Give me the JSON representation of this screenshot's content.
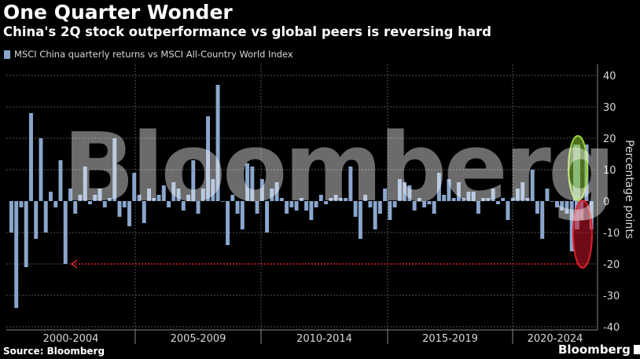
{
  "header": {
    "title": "One Quarter Wonder",
    "subtitle": "China's 2Q stock outperformance vs global peers is reversing hard"
  },
  "legend": {
    "label": "MSCI China quarterly returns vs MSCI All-Country World Index",
    "color": "#8aa6cc"
  },
  "footer": {
    "source": "Source: Bloomberg",
    "brand": "Bloomberg"
  },
  "watermark": "Bloomberg",
  "colors": {
    "bar": "#8aa6cc",
    "grid": "#555555",
    "axis": "#888888",
    "reference_line": "#e0202a",
    "highlight_up": "#9ad93a",
    "highlight_down": "#e0202a"
  },
  "chart_data": {
    "type": "bar",
    "title": "One Quarter Wonder",
    "subtitle": "China's 2Q stock outperformance vs global peers is reversing hard",
    "ylabel": "Percentage points",
    "xlabel": "",
    "ylim": [
      -40,
      40
    ],
    "yticks": [
      40,
      30,
      20,
      10,
      0,
      -10,
      -20,
      -30,
      -40
    ],
    "grid": true,
    "legend_position": "top-left",
    "series": [
      {
        "name": "MSCI China quarterly returns vs MSCI All-Country World Index",
        "values": [
          -10,
          -34,
          -2,
          -21,
          28,
          -12,
          20,
          -10,
          3,
          -2,
          13,
          -20,
          4,
          -4,
          2,
          11,
          -1,
          2,
          4,
          -2,
          1,
          20,
          -5,
          -2,
          -8,
          9,
          2,
          -7,
          4,
          1,
          2,
          5,
          -2,
          6,
          4,
          -3,
          2,
          13,
          -4,
          4,
          27,
          7,
          37,
          0,
          -14,
          2,
          -4,
          -9,
          12,
          11,
          -4,
          7,
          -10,
          4,
          6,
          1,
          -4,
          -2,
          -3,
          1,
          -3,
          -6,
          -2,
          2,
          -1,
          1,
          2,
          1,
          1,
          11,
          -5,
          -12,
          2,
          -2,
          -9,
          -4,
          4,
          -6,
          -2,
          7,
          6,
          5,
          -3,
          1,
          -2,
          -1,
          -4,
          9,
          2,
          7,
          1,
          6,
          1,
          3,
          3,
          -4,
          1,
          1,
          4,
          -1,
          1,
          -6,
          1,
          4,
          6,
          1,
          10,
          -4,
          -12,
          4,
          0,
          -2,
          -3,
          -4,
          -16,
          -8,
          -6,
          18,
          -9
        ],
        "highlighted_last_quarter_up": 18,
        "highlighted_last_quarter_down": -9
      }
    ],
    "period_labels": [
      "2000-2004",
      "2005-2009",
      "2010-2014",
      "2015-2019",
      "2020-2024"
    ],
    "reference_line": {
      "value": -20,
      "style": "dotted",
      "arrow": "left"
    }
  }
}
